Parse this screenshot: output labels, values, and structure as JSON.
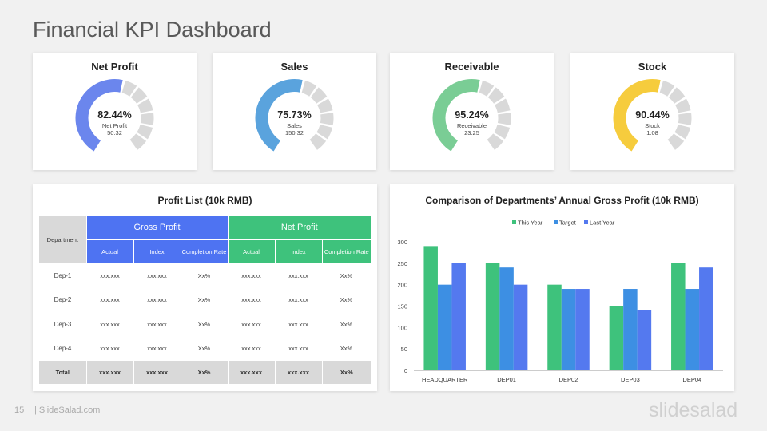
{
  "title": "Financial KPI Dashboard",
  "kpis": [
    {
      "title": "Net Profit",
      "percent_text": "82.44%",
      "percent": 82.44,
      "label": "Net Profit",
      "value": "50.32",
      "color": "#6b86ed"
    },
    {
      "title": "Sales",
      "percent_text": "75.73%",
      "percent": 75.73,
      "label": "Sales",
      "value": "150.32",
      "color": "#5aa3dd"
    },
    {
      "title": "Receivable",
      "percent_text": "95.24%",
      "percent": 95.24,
      "label": "Receivable",
      "value": "23.25",
      "color": "#7acd95"
    },
    {
      "title": "Stock",
      "percent_text": "90.44%",
      "percent": 90.44,
      "label": "Stock",
      "value": "1.08",
      "color": "#f6cc3d"
    }
  ],
  "gauge_track_color": "#d9d9d9",
  "profit_list": {
    "title": "Profit List (10k RMB)",
    "dept_header": "Department",
    "group_headers": [
      "Gross Profit",
      "Net Profit"
    ],
    "sub_headers": [
      "Actual",
      "Index",
      "Completion Rate",
      "Actual",
      "Index",
      "Completion Rate"
    ],
    "rows": [
      {
        "dept": "Dep-1",
        "cells": [
          "xxx.xxx",
          "xxx.xxx",
          "Xx%",
          "xxx.xxx",
          "xxx.xxx",
          "Xx%"
        ]
      },
      {
        "dept": "Dep-2",
        "cells": [
          "xxx.xxx",
          "xxx.xxx",
          "Xx%",
          "xxx.xxx",
          "xxx.xxx",
          "Xx%"
        ]
      },
      {
        "dept": "Dep-3",
        "cells": [
          "xxx.xxx",
          "xxx.xxx",
          "Xx%",
          "xxx.xxx",
          "xxx.xxx",
          "Xx%"
        ]
      },
      {
        "dept": "Dep-4",
        "cells": [
          "xxx.xxx",
          "xxx.xxx",
          "Xx%",
          "xxx.xxx",
          "xxx.xxx",
          "Xx%"
        ]
      }
    ],
    "total": {
      "dept": "Total",
      "cells": [
        "xxx.xxx",
        "xxx.xxx",
        "Xx%",
        "xxx.xxx",
        "xxx.xxx",
        "Xx%"
      ]
    },
    "colors": {
      "gross": "#4e73f2",
      "net": "#3ec27c",
      "dept": "#d9d9d9"
    }
  },
  "chart_data": {
    "type": "bar",
    "title": "Comparison of Departments’ Annual Gross Profit (10k RMB)",
    "categories": [
      "HEADQUARTER",
      "DEP01",
      "DEP02",
      "DEP03",
      "DEP04"
    ],
    "series": [
      {
        "name": "This Year",
        "values": [
          290,
          250,
          200,
          150,
          250
        ],
        "color": "#3ec27c"
      },
      {
        "name": "Target",
        "values": [
          200,
          240,
          190,
          190,
          190
        ],
        "color": "#3d8fe3"
      },
      {
        "name": "Last Year",
        "values": [
          250,
          200,
          190,
          140,
          240
        ],
        "color": "#5479ef"
      }
    ],
    "ylim": [
      0,
      300
    ],
    "yticks": [
      0,
      50,
      100,
      150,
      200,
      250,
      300
    ],
    "legend": "top",
    "grid": false
  },
  "footer": {
    "page": "15",
    "site": "| SlideSalad.com",
    "logo": "slidesalad"
  }
}
